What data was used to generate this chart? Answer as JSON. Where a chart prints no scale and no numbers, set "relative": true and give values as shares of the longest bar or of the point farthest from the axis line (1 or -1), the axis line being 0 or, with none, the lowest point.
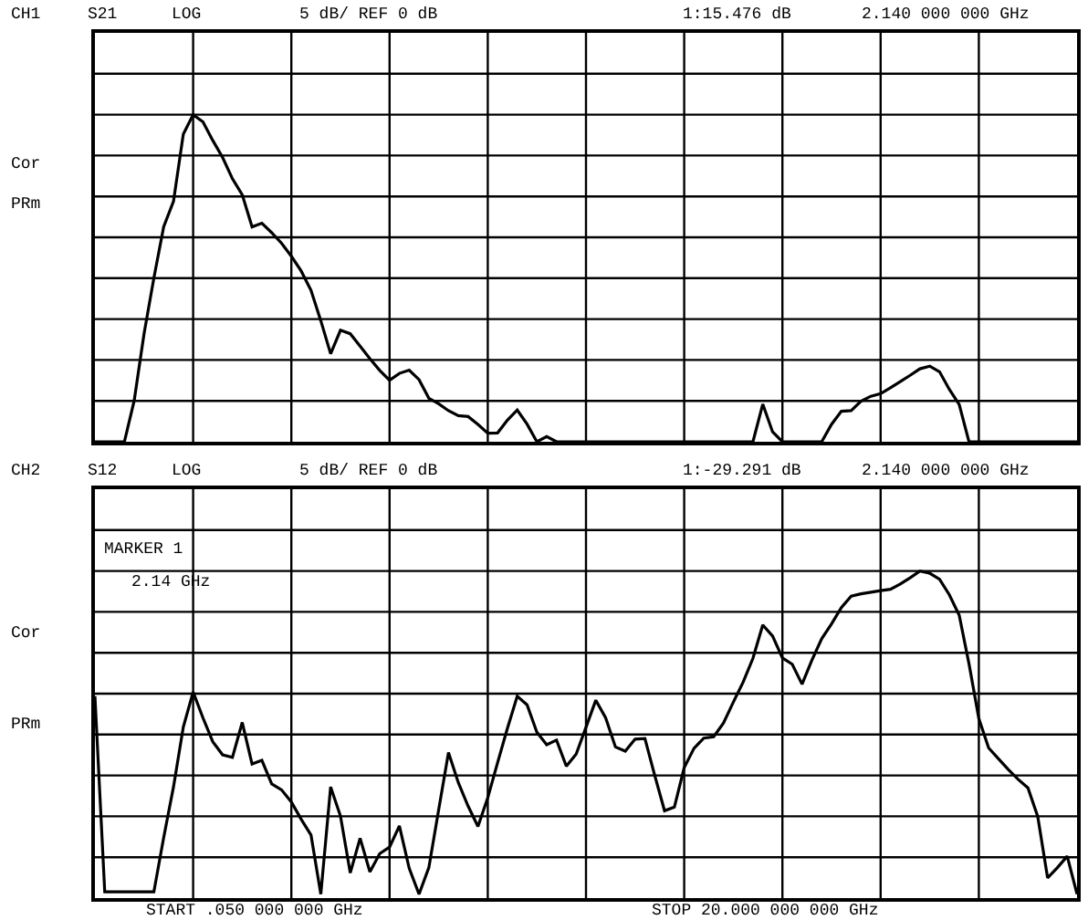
{
  "chart_data": [
    {
      "type": "line",
      "relative": true,
      "grid": true,
      "annotations": [
        "CH1",
        "S21",
        "LOG",
        "5 dB/ REF 0 dB",
        "1:15.476 dB",
        "2.140 000 000 GHz",
        "Cor",
        "PRm"
      ],
      "categories": [
        null,
        null,
        null,
        null,
        null,
        null,
        null,
        null,
        null,
        null,
        null,
        null,
        null,
        null,
        null,
        null,
        null,
        null,
        null,
        null,
        null,
        null,
        null,
        null,
        null,
        null,
        null,
        null,
        null,
        null,
        null,
        null,
        null,
        null,
        null,
        null,
        null,
        null,
        null,
        null,
        null,
        null,
        null,
        null,
        null,
        null,
        null,
        null,
        null,
        null,
        null,
        null,
        null,
        null,
        null,
        null,
        null,
        null,
        null,
        null,
        null,
        null,
        null,
        null,
        null,
        null,
        null,
        null,
        null,
        null,
        null,
        null,
        null,
        null,
        null,
        null,
        null,
        null,
        null,
        null,
        null,
        null,
        null,
        null,
        null,
        null,
        null,
        null,
        null,
        null,
        null,
        null,
        null,
        null,
        null,
        null,
        null,
        null,
        null,
        null,
        null
      ],
      "series": [
        {
          "color": "#000000",
          "values": [
            0,
            0,
            0,
            0,
            0.126,
            0.33,
            0.5,
            0.657,
            0.735,
            0.94,
            1,
            0.978,
            0.921,
            0.869,
            0.804,
            0.755,
            0.657,
            0.668,
            0.639,
            0.607,
            0.567,
            0.522,
            0.463,
            0.37,
            0.269,
            0.341,
            0.33,
            0.292,
            0.254,
            0.218,
            0.188,
            0.209,
            0.219,
            0.19,
            0.133,
            0.116,
            0.095,
            0.08,
            0.077,
            0.053,
            0.026,
            0.027,
            0.066,
            0.097,
            0.054,
            0,
            0.016,
            0,
            0,
            0,
            0,
            0,
            0,
            0,
            0,
            0,
            0,
            0,
            0,
            0,
            0,
            0,
            0,
            0,
            0,
            0,
            0,
            0,
            0.115,
            0.03,
            0,
            0,
            0,
            0,
            0,
            0.053,
            0.093,
            0.095,
            0.124,
            0.139,
            0.147,
            0.165,
            0.184,
            0.203,
            0.223,
            0.231,
            0.214,
            0.16,
            0.114,
            0,
            0,
            0,
            0,
            0,
            0,
            0,
            0,
            0,
            0,
            0,
            0
          ]
        }
      ]
    },
    {
      "type": "line",
      "relative": true,
      "grid": true,
      "annotations": [
        "CH2",
        "S12",
        "LOG",
        "5 dB/ REF 0 dB",
        "1:-29.291 dB",
        "2.140 000 000 GHz",
        "Cor",
        "PRm",
        "MARKER 1",
        "2.14 GHz",
        "START .050 000 000 GHz",
        "STOP 20.000 000 000 GHz"
      ],
      "categories": [
        null,
        null,
        null,
        null,
        null,
        null,
        null,
        null,
        null,
        null,
        null,
        null,
        null,
        null,
        null,
        null,
        null,
        null,
        null,
        null,
        null,
        null,
        null,
        null,
        null,
        null,
        null,
        null,
        null,
        null,
        null,
        null,
        null,
        null,
        null,
        null,
        null,
        null,
        null,
        null,
        null,
        null,
        null,
        null,
        null,
        null,
        null,
        null,
        null,
        null,
        null,
        null,
        null,
        null,
        null,
        null,
        null,
        null,
        null,
        null,
        null,
        null,
        null,
        null,
        null,
        null,
        null,
        null,
        null,
        null,
        null,
        null,
        null,
        null,
        null,
        null,
        null,
        null,
        null,
        null,
        null,
        null,
        null,
        null,
        null,
        null,
        null,
        null,
        null,
        null,
        null,
        null,
        null,
        null,
        null,
        null,
        null,
        null,
        null,
        null,
        null
      ],
      "series": [
        {
          "color": "#000000",
          "values": [
            0.617,
            0.019,
            0.019,
            0.019,
            0.019,
            0.019,
            0.019,
            0.185,
            0.34,
            0.523,
            0.63,
            0.551,
            0.478,
            0.438,
            0.43,
            0.537,
            0.41,
            0.421,
            0.349,
            0.331,
            0.294,
            0.241,
            0.193,
            0.012,
            0.34,
            0.251,
            0.077,
            0.183,
            0.08,
            0.136,
            0.156,
            0.221,
            0.091,
            0.012,
            0.093,
            0.27,
            0.445,
            0.353,
            0.281,
            0.219,
            0.307,
            0.414,
            0.519,
            0.617,
            0.591,
            0.507,
            0.469,
            0.483,
            0.403,
            0.44,
            0.522,
            0.605,
            0.551,
            0.462,
            0.449,
            0.486,
            0.488,
            0.375,
            0.267,
            0.278,
            0.399,
            0.458,
            0.489,
            0.493,
            0.535,
            0.599,
            0.66,
            0.733,
            0.835,
            0.801,
            0.734,
            0.715,
            0.654,
            0.727,
            0.793,
            0.838,
            0.888,
            0.923,
            0.93,
            0.935,
            0.94,
            0.944,
            0.96,
            0.979,
            1,
            0.993,
            0.975,
            0.927,
            0.865,
            0.716,
            0.549,
            0.459,
            0.426,
            0.393,
            0.363,
            0.337,
            0.249,
            0.062,
            0.093,
            0.128,
            0.012
          ]
        }
      ]
    }
  ]
}
